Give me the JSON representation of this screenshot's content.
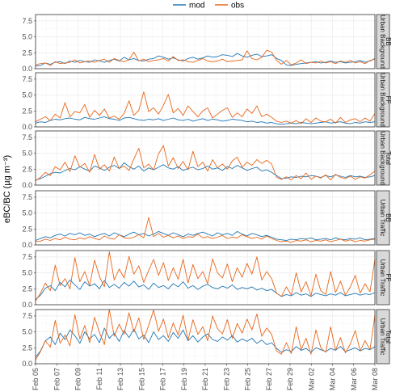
{
  "chart_data": {
    "type": "line",
    "ylabel": "eBC/BC (µg m⁻³)",
    "ylim": [
      0,
      8.5
    ],
    "yticks": [
      "0.0",
      "2.5",
      "5.0",
      "7.5"
    ],
    "xticks": [
      "Feb 05",
      "Feb 07",
      "Feb 09",
      "Feb 11",
      "Feb 13",
      "Feb 15",
      "Feb 17",
      "Feb 19",
      "Feb 21",
      "Feb 23",
      "Feb 25",
      "Feb 27",
      "Feb 29",
      "Mar 02",
      "Mar 04",
      "Mar 06",
      "Mar 08"
    ],
    "x_days": [
      0,
      32
    ],
    "grid": true,
    "legend": {
      "position": "top",
      "entries": [
        {
          "name": "mod",
          "color": "#1f77b4"
        },
        {
          "name": "obs",
          "color": "#e8661a"
        }
      ]
    },
    "panels": [
      {
        "site": "Urban Background",
        "component": "BB",
        "mod": [
          0.4,
          0.5,
          0.9,
          0.7,
          1.0,
          1.1,
          0.8,
          1.2,
          1.0,
          1.3,
          1.1,
          1.0,
          1.4,
          1.2,
          1.0,
          1.3,
          1.5,
          1.2,
          1.8,
          1.4,
          1.6,
          1.3,
          1.2,
          1.5,
          1.6,
          2.0,
          1.8,
          1.5,
          1.7,
          1.4,
          1.2,
          1.6,
          1.8,
          1.5,
          1.7,
          2.0,
          1.8,
          1.9,
          2.2,
          2.1,
          1.9,
          2.4,
          2.0,
          1.8,
          2.1,
          2.3,
          1.9,
          2.0,
          2.2,
          1.6,
          1.3,
          0.6,
          0.5,
          0.7,
          0.8,
          0.9,
          1.0,
          1.1,
          0.9,
          1.0,
          1.2,
          1.0,
          1.1,
          0.9,
          1.0,
          1.1,
          1.3,
          1.0,
          1.2,
          1.6
        ],
        "obs": [
          0.6,
          0.8,
          0.9,
          0.5,
          1.1,
          0.8,
          0.9,
          1.0,
          1.4,
          0.9,
          1.1,
          1.2,
          1.0,
          1.3,
          1.5,
          1.0,
          1.6,
          1.3,
          1.1,
          1.4,
          2.6,
          1.2,
          1.5,
          1.1,
          1.3,
          1.4,
          1.6,
          1.2,
          1.9,
          1.3,
          1.4,
          1.1,
          1.0,
          1.3,
          1.6,
          1.2,
          1.1,
          1.2,
          1.5,
          1.1,
          1.2,
          1.3,
          1.4,
          2.8,
          1.6,
          1.4,
          1.8,
          2.9,
          2.6,
          1.3,
          0.7,
          1.3,
          0.6,
          0.9,
          1.4,
          0.8,
          1.0,
          0.9,
          1.2,
          0.9,
          1.1,
          0.8,
          1.2,
          1.0,
          1.3,
          0.9,
          1.1,
          0.8,
          1.3,
          1.5
        ]
      },
      {
        "site": "Urban Background",
        "component": "FF",
        "mod": [
          0.6,
          0.8,
          0.7,
          1.0,
          1.2,
          1.1,
          1.3,
          1.4,
          1.2,
          1.1,
          1.5,
          1.3,
          1.2,
          1.4,
          1.6,
          1.3,
          1.2,
          1.0,
          1.4,
          1.5,
          1.3,
          1.1,
          1.0,
          1.2,
          1.1,
          1.3,
          1.0,
          1.2,
          1.4,
          1.1,
          1.0,
          1.2,
          0.9,
          1.1,
          1.3,
          1.0,
          1.2,
          1.1,
          0.9,
          1.0,
          1.2,
          1.1,
          1.0,
          0.8,
          0.9,
          0.7,
          0.8,
          0.6,
          0.7,
          0.5,
          0.4,
          0.5,
          0.6,
          0.5,
          0.7,
          0.6,
          0.5,
          0.6,
          0.7,
          0.8,
          0.6,
          0.7,
          0.8,
          0.6,
          0.5,
          0.7,
          0.6,
          0.8,
          0.7,
          0.8
        ],
        "obs": [
          0.8,
          1.2,
          1.6,
          1.0,
          2.0,
          1.4,
          3.8,
          1.6,
          2.4,
          2.2,
          3.5,
          1.5,
          2.6,
          1.8,
          2.8,
          1.4,
          1.7,
          1.2,
          2.1,
          4.1,
          1.8,
          2.6,
          5.5,
          2.4,
          3.0,
          2.0,
          3.4,
          5.1,
          2.2,
          2.9,
          1.8,
          3.3,
          2.4,
          1.6,
          2.5,
          3.0,
          1.4,
          2.0,
          2.6,
          3.0,
          1.5,
          2.2,
          1.6,
          2.8,
          2.1,
          3.3,
          1.6,
          2.0,
          1.5,
          0.9,
          0.7,
          0.9,
          0.6,
          1.0,
          0.5,
          1.3,
          0.7,
          1.4,
          0.9,
          0.8,
          1.2,
          0.6,
          1.5,
          0.7,
          1.1,
          1.3,
          0.8,
          1.4,
          0.9,
          2.1
        ]
      },
      {
        "site": "Urban Background",
        "component": "Total",
        "mod": [
          0.8,
          1.0,
          1.4,
          1.8,
          2.0,
          1.9,
          2.3,
          2.6,
          2.4,
          2.9,
          2.5,
          2.2,
          3.0,
          2.7,
          2.3,
          2.8,
          3.1,
          2.6,
          3.5,
          2.9,
          2.5,
          3.0,
          2.2,
          2.7,
          2.4,
          2.8,
          3.2,
          2.7,
          2.5,
          2.9,
          2.3,
          2.6,
          2.8,
          2.4,
          2.6,
          3.0,
          2.5,
          2.7,
          2.3,
          2.9,
          2.6,
          3.1,
          2.7,
          2.3,
          2.6,
          2.8,
          2.2,
          2.4,
          2.0,
          1.5,
          1.0,
          1.1,
          1.3,
          1.2,
          1.4,
          1.3,
          1.5,
          1.4,
          1.2,
          1.5,
          1.3,
          1.6,
          1.4,
          1.2,
          1.5,
          1.3,
          1.4,
          1.2,
          1.3,
          1.5
        ],
        "obs": [
          0.7,
          1.2,
          2.0,
          1.5,
          2.9,
          2.4,
          3.6,
          2.1,
          4.6,
          2.8,
          3.4,
          2.0,
          4.8,
          2.5,
          3.2,
          2.2,
          4.4,
          2.6,
          3.0,
          2.3,
          4.1,
          5.8,
          2.7,
          3.3,
          2.4,
          4.9,
          6.2,
          3.0,
          4.3,
          2.6,
          3.7,
          2.4,
          5.3,
          2.9,
          3.6,
          2.2,
          4.0,
          2.7,
          3.3,
          2.5,
          3.8,
          4.4,
          2.8,
          3.6,
          3.1,
          4.0,
          3.4,
          3.9,
          3.3,
          1.2,
          0.9,
          1.3,
          0.8,
          1.5,
          1.0,
          1.9,
          0.9,
          1.4,
          1.1,
          1.6,
          0.8,
          1.7,
          1.2,
          1.0,
          1.4,
          0.9,
          1.3,
          1.1,
          1.6,
          2.2
        ]
      },
      {
        "site": "Urban Traffic",
        "component": "BB",
        "mod": [
          0.7,
          1.0,
          1.3,
          1.1,
          1.5,
          1.7,
          1.4,
          1.8,
          1.6,
          1.9,
          1.5,
          1.7,
          1.3,
          1.6,
          1.8,
          1.4,
          1.9,
          1.6,
          1.3,
          1.7,
          2.0,
          1.6,
          1.8,
          1.4,
          1.7,
          2.1,
          1.8,
          1.5,
          1.9,
          1.6,
          1.3,
          1.7,
          1.5,
          1.8,
          2.0,
          1.7,
          1.4,
          1.9,
          1.6,
          1.8,
          1.5,
          2.1,
          1.7,
          1.4,
          1.8,
          1.6,
          1.3,
          1.5,
          1.2,
          0.9,
          0.8,
          0.7,
          0.9,
          0.8,
          1.0,
          0.9,
          1.1,
          0.8,
          0.9,
          1.0,
          0.8,
          1.1,
          0.9,
          0.8,
          1.0,
          0.9,
          1.1,
          0.8,
          0.9,
          1.0
        ],
        "obs": [
          0.5,
          0.6,
          0.9,
          0.7,
          1.0,
          0.8,
          1.2,
          0.9,
          0.8,
          1.1,
          0.9,
          1.3,
          1.0,
          0.8,
          1.4,
          1.0,
          0.9,
          1.6,
          1.1,
          1.0,
          1.2,
          1.6,
          1.1,
          4.3,
          1.3,
          1.8,
          1.2,
          1.5,
          1.1,
          1.4,
          1.0,
          1.3,
          1.2,
          1.7,
          1.1,
          1.3,
          1.0,
          1.2,
          1.5,
          1.0,
          1.2,
          1.1,
          1.6,
          1.3,
          1.0,
          1.2,
          0.9,
          1.4,
          1.0,
          0.7,
          0.5,
          0.6,
          0.4,
          0.7,
          0.6,
          0.8,
          0.5,
          0.7,
          0.6,
          0.8,
          0.5,
          0.7,
          0.9,
          0.6,
          0.8,
          0.5,
          0.7,
          0.6,
          0.8,
          0.9
        ]
      },
      {
        "site": "Urban Traffic",
        "component": "FF",
        "mod": [
          0.8,
          1.5,
          2.6,
          3.0,
          2.2,
          3.5,
          2.8,
          3.9,
          3.1,
          2.4,
          3.6,
          2.9,
          3.3,
          2.5,
          3.8,
          2.7,
          3.2,
          2.6,
          3.5,
          2.9,
          3.7,
          2.8,
          3.1,
          2.4,
          3.4,
          2.7,
          3.0,
          2.5,
          3.3,
          2.8,
          3.6,
          2.6,
          3.0,
          2.4,
          2.9,
          3.2,
          2.7,
          2.5,
          2.9,
          2.6,
          3.1,
          2.4,
          2.7,
          2.5,
          2.8,
          2.3,
          2.6,
          2.2,
          2.4,
          1.8,
          1.3,
          1.6,
          1.4,
          1.9,
          1.5,
          1.7,
          1.3,
          1.8,
          1.6,
          1.4,
          1.7,
          1.5,
          1.9,
          1.4,
          1.6,
          1.8,
          1.5,
          1.7,
          1.6,
          1.9
        ],
        "obs": [
          0.6,
          1.8,
          3.4,
          2.2,
          6.2,
          3.0,
          4.1,
          2.5,
          7.4,
          3.6,
          5.2,
          3.0,
          7.0,
          4.4,
          2.8,
          8.3,
          3.9,
          5.6,
          4.2,
          7.6,
          4.8,
          6.1,
          3.5,
          5.4,
          7.1,
          4.6,
          6.6,
          3.8,
          5.8,
          4.0,
          7.1,
          3.4,
          6.3,
          4.1,
          5.2,
          3.3,
          7.2,
          5.0,
          4.2,
          6.4,
          3.6,
          5.8,
          4.3,
          6.5,
          4.8,
          7.5,
          3.9,
          5.2,
          4.1,
          1.8,
          1.3,
          2.8,
          1.5,
          5.0,
          2.0,
          3.6,
          1.4,
          4.8,
          2.2,
          1.6,
          5.2,
          1.9,
          3.7,
          1.5,
          2.8,
          4.6,
          1.8,
          3.3,
          2.0,
          7.1
        ]
      },
      {
        "site": "Urban Traffic",
        "component": "Total",
        "mod": [
          1.0,
          2.0,
          3.6,
          4.2,
          3.0,
          4.8,
          3.8,
          5.3,
          4.4,
          3.2,
          5.0,
          3.9,
          4.6,
          3.3,
          5.6,
          4.0,
          4.8,
          3.5,
          5.2,
          4.1,
          5.4,
          3.9,
          4.5,
          3.3,
          5.0,
          3.8,
          4.4,
          3.5,
          4.9,
          4.0,
          5.3,
          3.6,
          4.4,
          3.4,
          4.2,
          4.7,
          3.8,
          3.5,
          4.2,
          3.7,
          4.4,
          3.4,
          3.9,
          3.5,
          4.0,
          3.2,
          3.7,
          3.0,
          3.3,
          2.4,
          1.8,
          2.2,
          1.9,
          2.7,
          2.1,
          2.4,
          1.8,
          2.5,
          2.2,
          1.9,
          2.4,
          2.1,
          2.7,
          1.9,
          2.2,
          2.5,
          2.0,
          2.4,
          2.2,
          2.7
        ],
        "obs": [
          0.6,
          1.9,
          3.6,
          2.6,
          6.8,
          3.2,
          4.5,
          2.8,
          7.7,
          3.9,
          6.0,
          3.3,
          7.3,
          4.9,
          3.0,
          8.5,
          4.3,
          6.2,
          4.6,
          8.0,
          5.0,
          7.2,
          3.8,
          6.0,
          8.4,
          5.1,
          7.0,
          4.1,
          6.4,
          4.5,
          7.6,
          3.7,
          6.9,
          4.6,
          5.8,
          3.6,
          7.5,
          5.5,
          4.7,
          6.9,
          4.0,
          6.3,
          4.8,
          7.0,
          5.3,
          7.8,
          4.3,
          5.6,
          4.6,
          2.0,
          1.5,
          3.3,
          1.6,
          5.8,
          2.2,
          4.0,
          1.5,
          5.3,
          2.5,
          1.8,
          5.8,
          2.1,
          4.1,
          1.7,
          3.1,
          5.2,
          2.0,
          3.6,
          2.2,
          7.6
        ]
      }
    ]
  }
}
